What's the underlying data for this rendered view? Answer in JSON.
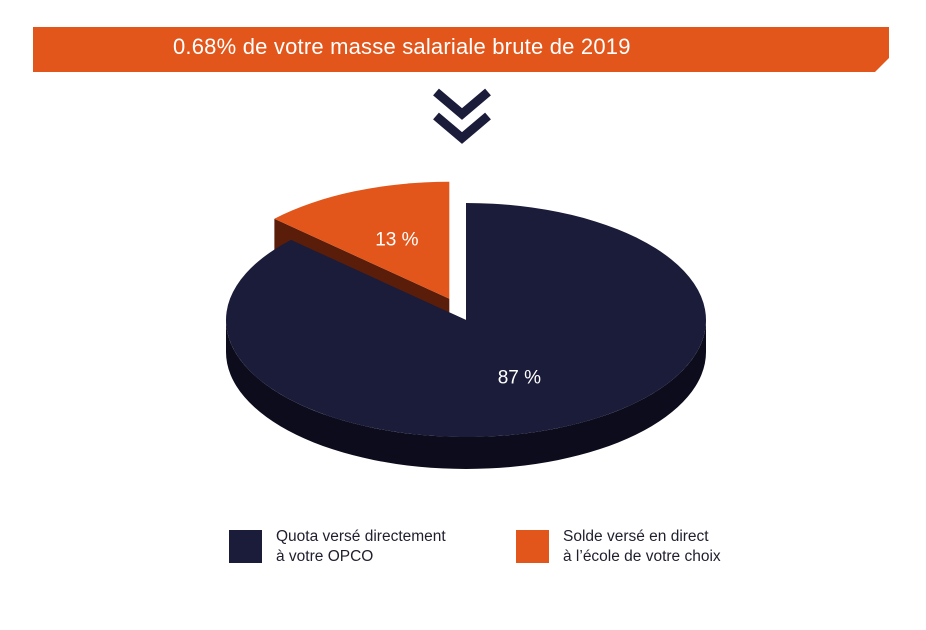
{
  "header": {
    "title": "0.68% de votre masse salariale brute de 2019",
    "color": "#e2561b",
    "icon": "double-chevron-down-icon",
    "icon_color": "#1b1b3a"
  },
  "chart_data": {
    "type": "pie",
    "style": "3d-exploded",
    "slices": [
      {
        "value": 87,
        "label": "87 %",
        "legend": [
          "Quota versé directement",
          "à votre OPCO"
        ],
        "color": "#1b1b3a",
        "side_color": "#0c0c1c",
        "exploded": false
      },
      {
        "value": 13,
        "label": "13 %",
        "legend": [
          "Solde versé en direct",
          "à l’école de votre choix"
        ],
        "color": "#e2561b",
        "side_color": "#5a1d0a",
        "exploded": true
      }
    ],
    "legend_position": "bottom"
  }
}
